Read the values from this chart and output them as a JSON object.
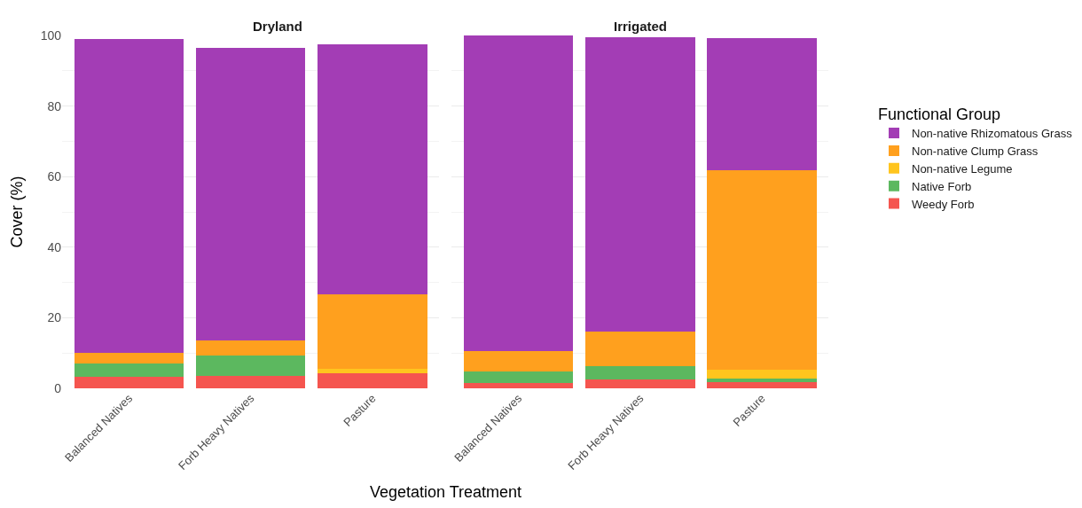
{
  "chart_data": [
    {
      "type": "bar",
      "title": "Dryland",
      "xlabel": "Vegetation Treatment",
      "ylabel": "Cover (%)",
      "legend_title": "Functional Group",
      "legend": "right",
      "stacked": true,
      "grid": "y",
      "ylim": [
        0,
        100
      ],
      "yticks": [
        0,
        20,
        40,
        60,
        80,
        100
      ],
      "categories": [
        "Balanced Natives",
        "Forb Heavy Natives",
        "Pasture"
      ],
      "series": [
        {
          "name": "Weedy Forb",
          "color": "#f5554f",
          "values": [
            3.3,
            3.6,
            4.2
          ]
        },
        {
          "name": "Native Forb",
          "color": "#5cb85f",
          "values": [
            3.7,
            5.7,
            0
          ]
        },
        {
          "name": "Non-native Legume",
          "color": "#ffc51e",
          "values": [
            0,
            0,
            1.4
          ]
        },
        {
          "name": "Non-native Clump Grass",
          "color": "#ffa01e",
          "values": [
            3.0,
            4.3,
            21.0
          ]
        },
        {
          "name": "Non-native Rhizomatous Grass",
          "color": "#a33db5",
          "values": [
            88.9,
            83.0,
            70.8
          ]
        }
      ]
    },
    {
      "type": "bar",
      "title": "Irrigated",
      "stacked": true,
      "grid": "y",
      "ylim": [
        0,
        100
      ],
      "yticks": [
        0,
        20,
        40,
        60,
        80,
        100
      ],
      "tick_labels": "x",
      "categories": [
        "Balanced Natives",
        "Forb Heavy Natives",
        "Pasture"
      ],
      "series": [
        {
          "color": "#f5554f",
          "values": [
            1.4,
            2.4,
            1.8
          ]
        },
        {
          "color": "#5cb85f",
          "values": [
            3.3,
            3.9,
            0.9
          ]
        },
        {
          "color": "#ffc51e",
          "values": [
            0,
            0,
            2.6
          ]
        },
        {
          "color": "#ffa01e",
          "values": [
            5.8,
            9.7,
            56.6
          ]
        },
        {
          "color": "#a33db5",
          "values": [
            89.5,
            83.6,
            37.3
          ]
        }
      ]
    }
  ]
}
